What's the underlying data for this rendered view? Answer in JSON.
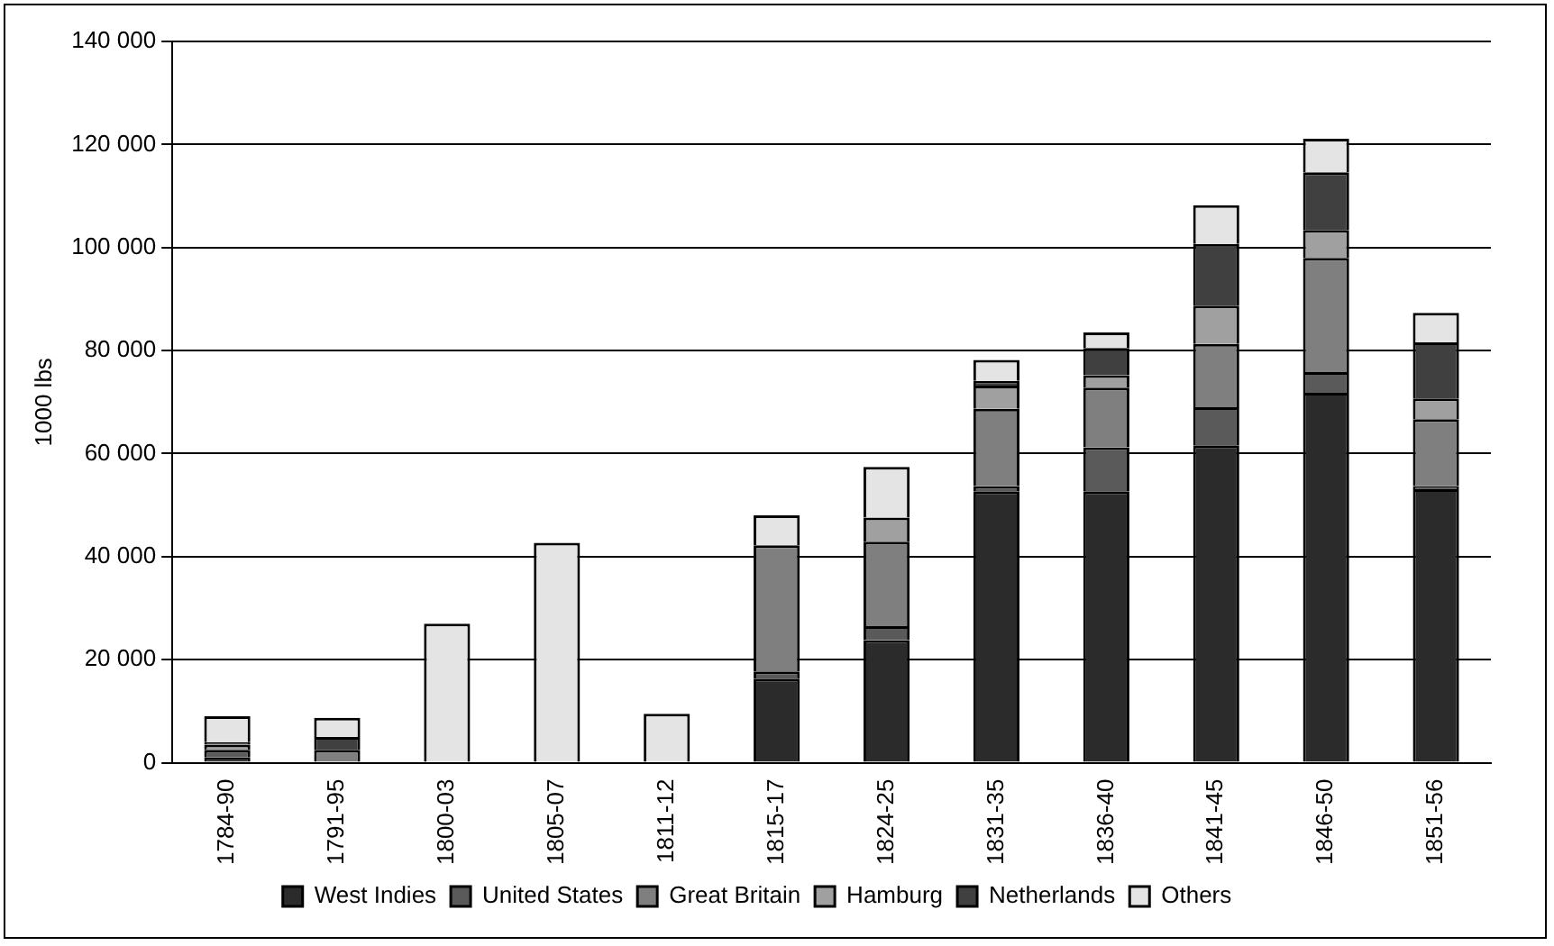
{
  "chart_data": {
    "type": "bar",
    "stacked": true,
    "ylabel": "1000 lbs",
    "categories": [
      "1784-90",
      "1791-95",
      "1800-03",
      "1805-07",
      "1811-12",
      "1815-17",
      "1824-25",
      "1831-35",
      "1836-40",
      "1841-45",
      "1846-50",
      "1851-56"
    ],
    "series": [
      {
        "name": "West Indies",
        "color": "#2b2b2b",
        "values": [
          1000,
          null,
          0,
          0,
          0,
          16300,
          23800,
          52700,
          52700,
          61600,
          71800,
          53100
        ]
      },
      {
        "name": "United States",
        "color": "#5a5a5a",
        "values": [
          1500,
          0,
          0,
          0,
          0,
          1400,
          2700,
          1000,
          8500,
          7400,
          4000,
          600
        ]
      },
      {
        "name": "Great Britain",
        "color": "#7f7f7f",
        "values": [
          0,
          2500,
          0,
          0,
          0,
          24500,
          16400,
          15000,
          11600,
          12300,
          22200,
          13000
        ]
      },
      {
        "name": "Hamburg",
        "color": "#a0a0a0",
        "values": [
          1000,
          0,
          0,
          0,
          0,
          0,
          4700,
          4500,
          2400,
          7400,
          5400,
          4000
        ]
      },
      {
        "name": "Netherlands",
        "color": "#404040",
        "values": [
          500,
          2500,
          0,
          0,
          0,
          0,
          0,
          900,
          5300,
          12000,
          11200,
          10900
        ]
      },
      {
        "name": "Others",
        "color": "#e4e4e4",
        "values": [
          5000,
          3700,
          27000,
          42700,
          9500,
          5800,
          9800,
          4100,
          3000,
          7500,
          6500,
          5700
        ]
      }
    ],
    "ylim": [
      0,
      140000
    ],
    "yticks": [
      0,
      {
        "value": 20000,
        "label": "20 000"
      },
      {
        "value": 40000,
        "label": "40 000"
      },
      {
        "value": 60000,
        "label": "60 000"
      },
      {
        "value": 80000,
        "label": "80 000"
      },
      {
        "value": 100000,
        "label": "100 000"
      },
      {
        "value": 120000,
        "label": "120 000"
      },
      {
        "value": 140000,
        "label": "140 000"
      }
    ],
    "grid": "y",
    "legend": "bottom"
  }
}
